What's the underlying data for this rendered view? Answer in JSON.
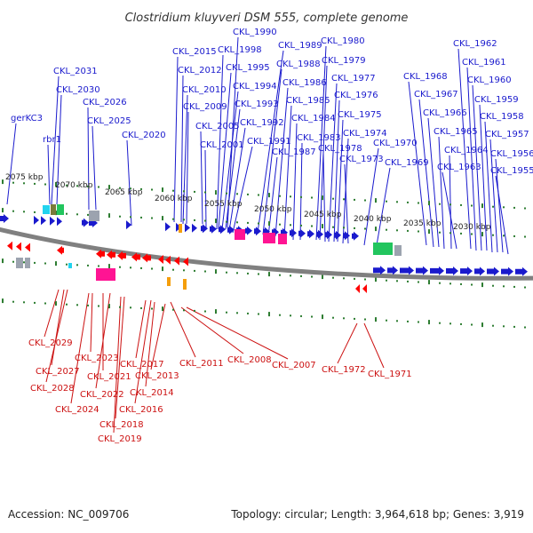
{
  "title": "Clostridium kluyveri DSM 555, complete genome",
  "footer": {
    "accession_label": "Accession:",
    "accession": "NC_009706",
    "topology": "Topology: circular; Length: 3,964,618 bp; Genes: 3,919"
  },
  "colors": {
    "forward_gene": "#1a1acd",
    "reverse_gene": "#ff0000",
    "forward_label": "#1a1acd",
    "reverse_label": "#cc1111",
    "backbone": "#808080",
    "tick": "#2e7d32",
    "rna_pink": "#ff1493",
    "rna_green": "#22c55e",
    "rna_cyan": "#22d3ee",
    "rna_gray": "#9ca3af",
    "rna_olive": "#7a7a3a",
    "rna_orange": "#f59e0b"
  },
  "scale_labels": [
    "2075 kbp",
    "2070 kbp",
    "2065 kbp",
    "2060 kbp",
    "2055 kbp",
    "2050 kbp",
    "2045 kbp",
    "2040 kbp",
    "2035 kbp",
    "2030 kbp"
  ],
  "forward_labels": [
    "gerKC3",
    "rbr1",
    "CKL_2031",
    "CKL_2030",
    "CKL_2026",
    "CKL_2025",
    "CKL_2020",
    "CKL_2015",
    "CKL_2012",
    "CKL_2010",
    "CKL_2009",
    "CKL_2005",
    "CKL_2001",
    "CKL_1998",
    "CKL_1995",
    "CKL_1994",
    "CKL_1993",
    "CKL_1992",
    "CKL_1991",
    "CKL_1990",
    "CKL_1989",
    "CKL_1988",
    "CKL_1987",
    "CKL_1986",
    "CKL_1985",
    "CKL_1984",
    "CKL_1983",
    "CKL_1980",
    "CKL_1979",
    "CKL_1978",
    "CKL_1977",
    "CKL_1976",
    "CKL_1975",
    "CKL_1974",
    "CKL_1973",
    "CKL_1970",
    "CKL_1969",
    "CKL_1968",
    "CKL_1967",
    "CKL_1966",
    "CKL_1965",
    "CKL_1964",
    "CKL_1963",
    "CKL_1962",
    "CKL_1961",
    "CKL_1960",
    "CKL_1959",
    "CKL_1958",
    "CKL_1957",
    "CKL_1956",
    "CKL_1955"
  ],
  "reverse_labels": [
    "CKL_2029",
    "CKL_2027",
    "CKL_2028",
    "CKL_2024",
    "CKL_2023",
    "CKL_2021",
    "CKL_2022",
    "CKL_2019",
    "CKL_2018",
    "CKL_2017",
    "CKL_2016",
    "CKL_2014",
    "CKL_2013",
    "CKL_2011",
    "CKL_2008",
    "CKL_2007",
    "CKL_1972",
    "CKL_1971"
  ]
}
